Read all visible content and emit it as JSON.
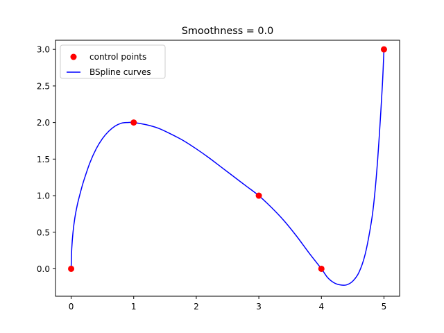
{
  "chart_data": {
    "type": "line",
    "title": "Smoothness = 0.0",
    "xlabel": "",
    "ylabel": "",
    "xlim": [
      -0.25,
      5.25
    ],
    "ylim": [
      -0.375,
      3.125
    ],
    "x_ticks": [
      0,
      1,
      2,
      3,
      4,
      5
    ],
    "x_tick_labels": [
      "0",
      "1",
      "2",
      "3",
      "4",
      "5"
    ],
    "y_ticks": [
      0.0,
      0.5,
      1.0,
      1.5,
      2.0,
      2.5,
      3.0
    ],
    "y_tick_labels": [
      "0.0",
      "0.5",
      "1.0",
      "1.5",
      "2.0",
      "2.5",
      "3.0"
    ],
    "grid": false,
    "legend_position": "top-left",
    "series": [
      {
        "name": "control points",
        "kind": "scatter",
        "color": "#ff0000",
        "x": [
          0,
          1,
          3,
          4,
          5
        ],
        "y": [
          0,
          2,
          1,
          0,
          3
        ]
      },
      {
        "name": "BSpline curves",
        "kind": "line",
        "color": "#0000ff",
        "x": [
          0,
          0.01,
          0.03,
          0.06,
          0.1,
          0.15,
          0.2,
          0.3,
          0.4,
          0.5,
          0.6,
          0.7,
          0.8,
          0.9,
          1.0,
          1.2,
          1.4,
          1.6,
          1.8,
          2.0,
          2.2,
          2.4,
          2.6,
          2.8,
          3.0,
          3.2,
          3.4,
          3.6,
          3.8,
          4.0,
          4.1,
          4.2,
          4.3,
          4.4,
          4.5,
          4.6,
          4.7,
          4.8,
          4.85,
          4.9,
          4.95,
          4.98,
          5.0
        ],
        "y": [
          0.0,
          0.28,
          0.5,
          0.7,
          0.88,
          1.05,
          1.2,
          1.45,
          1.64,
          1.78,
          1.88,
          1.95,
          1.99,
          2.0,
          2.0,
          1.97,
          1.92,
          1.84,
          1.75,
          1.64,
          1.52,
          1.39,
          1.26,
          1.13,
          1.0,
          0.84,
          0.66,
          0.45,
          0.22,
          0.0,
          -0.12,
          -0.19,
          -0.22,
          -0.22,
          -0.17,
          -0.05,
          0.2,
          0.65,
          1.0,
          1.5,
          2.15,
          2.6,
          3.0
        ]
      }
    ]
  }
}
